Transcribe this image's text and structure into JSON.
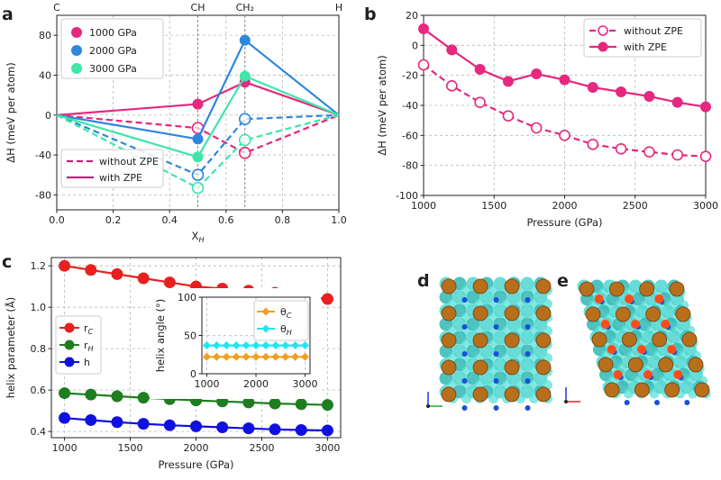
{
  "panel_letters": [
    "a",
    "b",
    "c",
    "d",
    "e"
  ],
  "chart_data": [
    {
      "id": "a",
      "type": "line",
      "xlabel": "X",
      "xlabel_sub": "H",
      "ylabel": "ΔH (meV per atom)",
      "xlim": [
        0,
        1
      ],
      "ylim": [
        -95,
        100
      ],
      "xticks": [
        "0.0",
        "0.2",
        "0.4",
        "0.6",
        "0.8",
        "1.0"
      ],
      "yticks": [
        "-80",
        "-40",
        "0",
        "40",
        "80"
      ],
      "xtick_values": [
        0,
        0.2,
        0.4,
        0.6,
        0.8,
        1.0
      ],
      "ytick_values": [
        -80,
        -40,
        0,
        40,
        80
      ],
      "top_labels": [
        {
          "text": "C",
          "x": 0
        },
        {
          "text": "CH",
          "x": 0.5
        },
        {
          "text": "CH₂",
          "x": 0.667
        },
        {
          "text": "H",
          "x": 1.0
        }
      ],
      "vlines": [
        0.5,
        0.667
      ],
      "x": [
        0,
        0.5,
        0.667,
        1.0
      ],
      "series": [
        {
          "name": "1000 GPa",
          "color": "#e6287f",
          "with_zpe": [
            0,
            11,
            33,
            0
          ],
          "without_zpe": [
            0,
            -13,
            -38,
            0
          ]
        },
        {
          "name": "2000 GPa",
          "color": "#2e86de",
          "with_zpe": [
            0,
            -24,
            75,
            0
          ],
          "without_zpe": [
            0,
            -60,
            -4,
            0
          ]
        },
        {
          "name": "3000 GPa",
          "color": "#3ee6a8",
          "with_zpe": [
            0,
            -42,
            39,
            0
          ],
          "without_zpe": [
            0,
            -73,
            -25,
            0
          ]
        }
      ],
      "legend_style": [
        {
          "label": "without ZPE",
          "style": "dashed",
          "color": "#c2237f"
        },
        {
          "label": "with ZPE",
          "style": "solid",
          "color": "#c2237f"
        }
      ]
    },
    {
      "id": "b",
      "type": "line",
      "xlabel": "Pressure (GPa)",
      "ylabel": "ΔH (meV per atom)",
      "xlim": [
        1000,
        3000
      ],
      "ylim": [
        -100,
        20
      ],
      "xticks": [
        "1000",
        "1500",
        "2000",
        "2500",
        "3000"
      ],
      "yticks": [
        "-100",
        "-80",
        "-60",
        "-40",
        "-20",
        "0",
        "20"
      ],
      "xtick_values": [
        1000,
        1500,
        2000,
        2500,
        3000
      ],
      "ytick_values": [
        -100,
        -80,
        -60,
        -40,
        -20,
        0,
        20
      ],
      "x": [
        1000,
        1200,
        1400,
        1600,
        1800,
        2000,
        2200,
        2400,
        2600,
        2800,
        3000
      ],
      "color": "#e6287f",
      "series": [
        {
          "name": "without ZPE",
          "style": "dashed-open",
          "values": [
            -13,
            -27,
            -38,
            -47,
            -55,
            -60,
            -66,
            -69,
            -71,
            -73,
            -74
          ]
        },
        {
          "name": "with ZPE",
          "style": "solid-filled",
          "values": [
            11,
            -3,
            -16,
            -24,
            -19,
            -23,
            -28,
            -31,
            -34,
            -38,
            -41
          ]
        }
      ]
    },
    {
      "id": "c",
      "type": "line",
      "xlabel": "Pressure (GPa)",
      "ylabel": "helix parameter (Å)",
      "xlim": [
        900,
        3100
      ],
      "ylim": [
        0.37,
        1.24
      ],
      "xticks": [
        "1000",
        "1500",
        "2000",
        "2500",
        "3000"
      ],
      "yticks": [
        "0.4",
        "0.6",
        "0.8",
        "1.0",
        "1.2"
      ],
      "xtick_values": [
        1000,
        1500,
        2000,
        2500,
        3000
      ],
      "ytick_values": [
        0.4,
        0.6,
        0.8,
        1.0,
        1.2
      ],
      "x": [
        1000,
        1200,
        1400,
        1600,
        1800,
        2000,
        2200,
        2400,
        2600,
        2800,
        3000
      ],
      "series": [
        {
          "name": "r",
          "sub": "C",
          "color": "#e8201f",
          "values": [
            1.2,
            1.18,
            1.16,
            1.14,
            1.12,
            1.1,
            1.09,
            1.08,
            1.07,
            1.055,
            1.04
          ]
        },
        {
          "name": "r",
          "sub": "H",
          "color": "#1e7d1e",
          "values": [
            0.585,
            0.578,
            0.57,
            0.563,
            0.556,
            0.55,
            0.545,
            0.54,
            0.535,
            0.532,
            0.528
          ]
        },
        {
          "name": "h",
          "sub": "",
          "color": "#1010e0",
          "values": [
            0.465,
            0.455,
            0.445,
            0.437,
            0.43,
            0.425,
            0.42,
            0.415,
            0.41,
            0.407,
            0.405
          ]
        }
      ],
      "inset": {
        "ylabel": "helix angle (°)",
        "xlim": [
          900,
          3100
        ],
        "ylim": [
          0,
          100
        ],
        "xticks": [
          "1000",
          "2000",
          "3000"
        ],
        "yticks": [
          "0",
          "50",
          "100"
        ],
        "xtick_values": [
          1000,
          2000,
          3000
        ],
        "ytick_values": [
          0,
          50,
          100
        ],
        "x": [
          1000,
          1200,
          1400,
          1600,
          1800,
          2000,
          2200,
          2400,
          2600,
          2800,
          3000
        ],
        "series": [
          {
            "name": "θ",
            "sub": "C",
            "color": "#f0a020",
            "values": [
              22,
              22,
              22,
              22,
              22,
              22,
              22,
              22,
              22,
              22,
              22
            ]
          },
          {
            "name": "θ",
            "sub": "H",
            "color": "#22e5f0",
            "values": [
              37,
              37,
              37,
              37,
              37,
              37,
              37,
              37,
              37,
              37,
              37
            ]
          }
        ]
      }
    }
  ],
  "structures": {
    "d": {
      "letter": "d"
    },
    "e": {
      "letter": "e"
    }
  }
}
